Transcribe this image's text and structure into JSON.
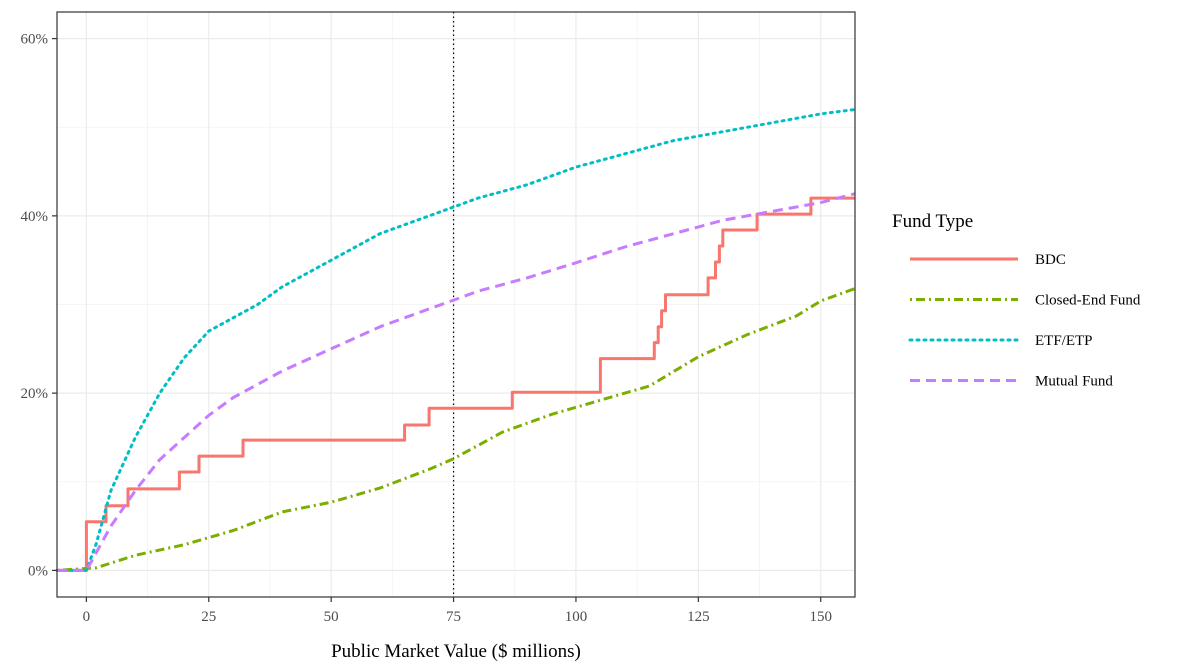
{
  "chart_data": {
    "type": "line",
    "title": "",
    "xlabel": "Public Market Value ($ millions)",
    "ylabel": "",
    "xlim": [
      -6,
      157
    ],
    "ylim": [
      -3,
      63
    ],
    "x_ticks": [
      0,
      25,
      50,
      75,
      100,
      125,
      150
    ],
    "x_tick_labels": [
      "0",
      "25",
      "50",
      "75",
      "100",
      "125",
      "150"
    ],
    "y_ticks": [
      0,
      20,
      40,
      60
    ],
    "y_tick_labels": [
      "0%",
      "20%",
      "40%",
      "60%"
    ],
    "grid": true,
    "reference_line": {
      "x": 75,
      "style": "dotted",
      "color": "#000000"
    },
    "legend": {
      "title": "Fund Type",
      "position": "right"
    },
    "series": [
      {
        "name": "BDC",
        "color": "#F8766D",
        "dash": "solid",
        "step": true,
        "x": [
          -6,
          0,
          4,
          8.5,
          19,
          23,
          32,
          65,
          70,
          87,
          105,
          116,
          116.8,
          117.5,
          118.3,
          119.5,
          127,
          128.5,
          129.3,
          130,
          137,
          148,
          157
        ],
        "y": [
          0,
          5.5,
          7.3,
          9.2,
          11.1,
          12.9,
          14.7,
          16.4,
          18.3,
          20.1,
          23.9,
          25.7,
          27.5,
          29.3,
          31.1,
          31.1,
          33.0,
          34.8,
          36.6,
          38.4,
          40.2,
          42.0,
          42.0
        ]
      },
      {
        "name": "Closed-End Fund",
        "color": "#7CAE00",
        "dash": "dashdot",
        "step": false,
        "x": [
          -6,
          2,
          10,
          20,
          30,
          40,
          50,
          60,
          70,
          75,
          85,
          95,
          105,
          115,
          125,
          135,
          145,
          150,
          157
        ],
        "y": [
          0,
          0.3,
          1.7,
          2.9,
          4.5,
          6.6,
          7.7,
          9.3,
          11.4,
          12.6,
          15.6,
          17.6,
          19.2,
          20.8,
          24.1,
          26.6,
          28.7,
          30.4,
          31.8
        ]
      },
      {
        "name": "ETF/ETP",
        "color": "#00BFC4",
        "dash": "dotted",
        "step": false,
        "x": [
          -6,
          0,
          2,
          5,
          10,
          15,
          20,
          25,
          30,
          35,
          40,
          50,
          60,
          70,
          75,
          80,
          90,
          100,
          110,
          120,
          130,
          140,
          150,
          157
        ],
        "y": [
          0,
          0,
          3,
          9,
          15,
          20,
          24,
          27,
          28.5,
          30,
          32,
          35,
          38,
          40,
          41,
          42,
          43.5,
          45.5,
          47,
          48.5,
          49.5,
          50.5,
          51.5,
          52
        ]
      },
      {
        "name": "Mutual Fund",
        "color": "#C77CFF",
        "dash": "dashed",
        "step": false,
        "x": [
          -6,
          0,
          2,
          5,
          10,
          15,
          20,
          25,
          30,
          40,
          50,
          60,
          70,
          75,
          80,
          90,
          100,
          110,
          120,
          130,
          140,
          150,
          157
        ],
        "y": [
          0,
          0,
          2,
          5,
          9,
          12.5,
          15,
          17.5,
          19.5,
          22.5,
          25,
          27.5,
          29.5,
          30.5,
          31.5,
          33,
          34.7,
          36.5,
          38,
          39.5,
          40.5,
          41.5,
          42.5
        ]
      }
    ]
  }
}
